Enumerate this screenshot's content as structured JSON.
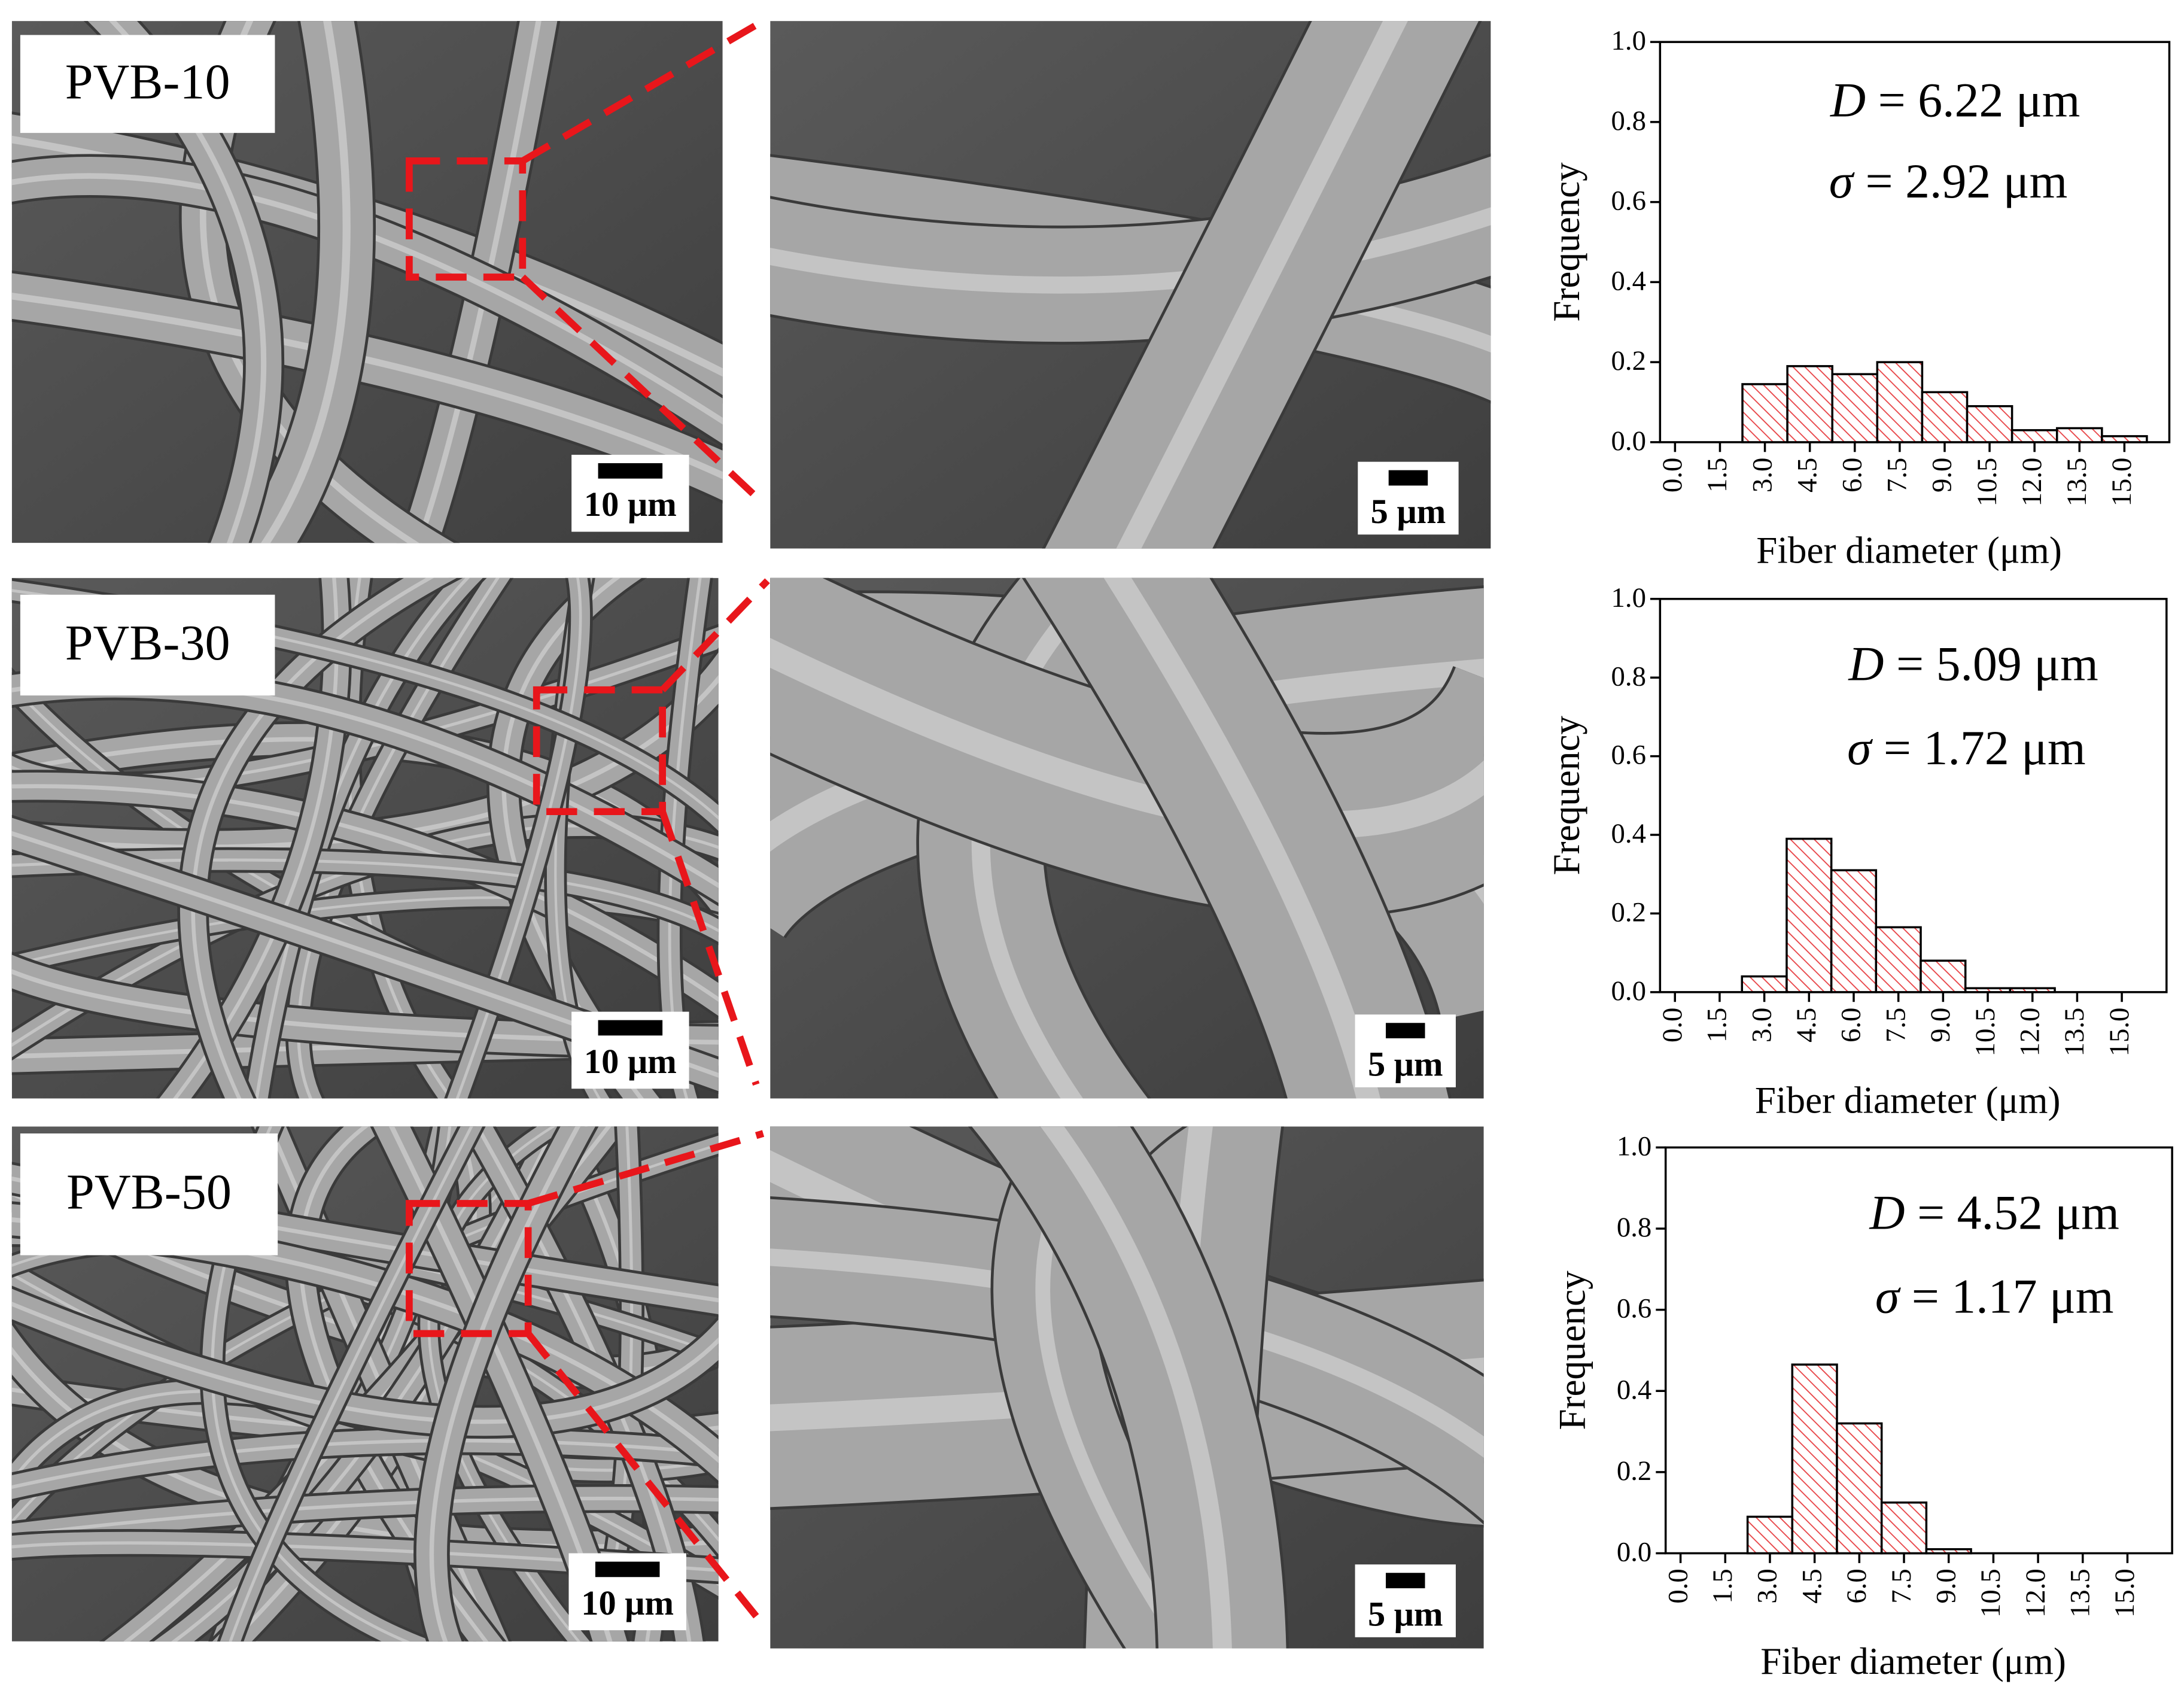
{
  "sem_panels": [
    {
      "label": "PVB-10",
      "scale_bar": "10 μm",
      "zoom_scale_bar": "5 μm"
    },
    {
      "label": "PVB-30",
      "scale_bar": "10 μm",
      "zoom_scale_bar": "5 μm"
    },
    {
      "label": "PVB-50",
      "scale_bar": "10 μm",
      "zoom_scale_bar": "5 μm"
    }
  ],
  "chart_data": [
    {
      "type": "histogram",
      "xlabel": "Fiber diameter (μm)",
      "ylabel": "Frequency",
      "annotations": [
        "D = 6.22 μm",
        "σ = 2.92 μm"
      ],
      "color": "#e8474a",
      "bins": [
        2.25,
        3.75,
        5.25,
        6.75,
        8.25,
        9.75,
        11.25,
        12.75,
        14.25,
        15.75
      ],
      "values": [
        0.145,
        0.19,
        0.17,
        0.2,
        0.125,
        0.09,
        0.03,
        0.035,
        0.015
      ],
      "xlim": [
        -0.5,
        16.5
      ],
      "ylim": [
        0,
        1
      ],
      "xticks": [
        {
          "value": 0,
          "label": "0.0"
        },
        1.5,
        {
          "value": 3,
          "label": "3.0"
        },
        4.5,
        {
          "value": 6,
          "label": "6.0"
        },
        7.5,
        {
          "value": 9,
          "label": "9.0"
        },
        10.5,
        {
          "value": 12,
          "label": "12.0"
        },
        13.5,
        {
          "value": 15,
          "label": "15.0"
        }
      ],
      "yticks": [
        {
          "value": 0,
          "label": "0.0"
        },
        0.2,
        0.4,
        0.6,
        0.8,
        {
          "value": 1,
          "label": "1.0"
        }
      ]
    },
    {
      "type": "histogram",
      "xlabel": "Fiber diameter (μm)",
      "ylabel": "Frequency",
      "annotations": [
        "D = 5.09 μm",
        "σ = 1.72 μm"
      ],
      "color": "#e8474a",
      "bins": [
        2.25,
        3.75,
        5.25,
        6.75,
        8.25,
        9.75,
        11.25,
        12.75
      ],
      "values": [
        0.04,
        0.39,
        0.31,
        0.165,
        0.08,
        0.01,
        0.01
      ],
      "xlim": [
        -0.5,
        16.5
      ],
      "ylim": [
        0,
        1
      ],
      "xticks": [
        {
          "value": 0,
          "label": "0.0"
        },
        1.5,
        {
          "value": 3,
          "label": "3.0"
        },
        4.5,
        {
          "value": 6,
          "label": "6.0"
        },
        7.5,
        {
          "value": 9,
          "label": "9.0"
        },
        10.5,
        {
          "value": 12,
          "label": "12.0"
        },
        13.5,
        {
          "value": 15,
          "label": "15.0"
        }
      ],
      "yticks": [
        {
          "value": 0,
          "label": "0.0"
        },
        0.2,
        0.4,
        0.6,
        0.8,
        {
          "value": 1,
          "label": "1.0"
        }
      ]
    },
    {
      "type": "histogram",
      "xlabel": "Fiber diameter (μm)",
      "ylabel": "Frequency",
      "annotations": [
        "D = 4.52 μm",
        "σ = 1.17 μm"
      ],
      "color": "#e8474a",
      "bins": [
        2.25,
        3.75,
        5.25,
        6.75,
        8.25,
        9.75
      ],
      "values": [
        0.09,
        0.465,
        0.32,
        0.125,
        0.01
      ],
      "xlim": [
        -0.5,
        16.5
      ],
      "ylim": [
        0,
        1
      ],
      "xticks": [
        {
          "value": 0,
          "label": "0.0"
        },
        1.5,
        {
          "value": 3,
          "label": "3.0"
        },
        4.5,
        {
          "value": 6,
          "label": "6.0"
        },
        7.5,
        {
          "value": 9,
          "label": "9.0"
        },
        10.5,
        {
          "value": 12,
          "label": "12.0"
        },
        13.5,
        {
          "value": 15,
          "label": "15.0"
        }
      ],
      "yticks": [
        {
          "value": 0,
          "label": "0.0"
        },
        0.2,
        0.4,
        0.6,
        0.8,
        {
          "value": 1,
          "label": "1.0"
        }
      ]
    }
  ]
}
